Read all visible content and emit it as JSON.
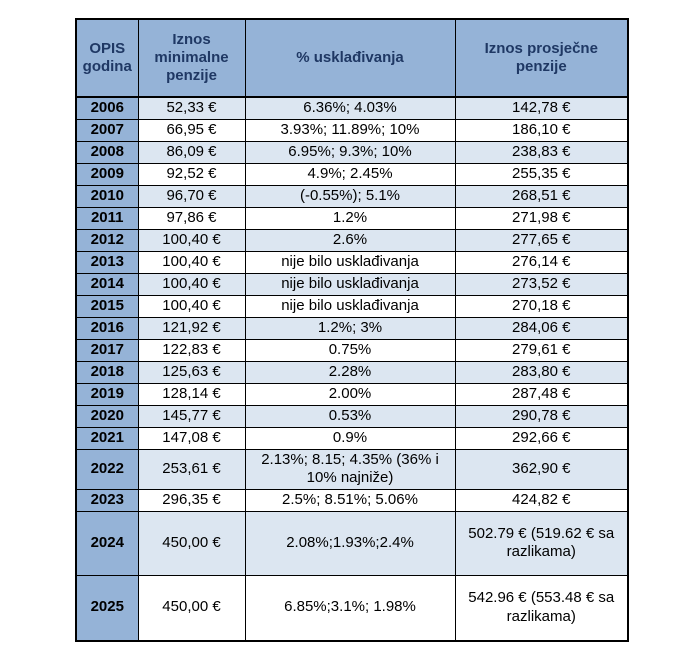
{
  "colors": {
    "header_bg": "#95B3D7",
    "year_col_bg": "#95B3D7",
    "row_alt_bg": "#DCE6F1",
    "row_bg": "#FFFFFF",
    "header_text": "#1F3864",
    "body_text": "#000000",
    "border": "#000000"
  },
  "table": {
    "columns": [
      "OPIS godina",
      "Iznos minimalne penzije",
      "% usklađivanja",
      "Iznos prosječne penzije"
    ],
    "rows": [
      {
        "year": "2006",
        "min": "52,33 €",
        "adj": "6.36%; 4.03%",
        "avg": "142,78 €"
      },
      {
        "year": "2007",
        "min": "66,95 €",
        "adj": "3.93%; 11.89%; 10%",
        "avg": "186,10 €"
      },
      {
        "year": "2008",
        "min": "86,09 €",
        "adj": "6.95%; 9.3%; 10%",
        "avg": "238,83 €"
      },
      {
        "year": "2009",
        "min": "92,52 €",
        "adj": "4.9%; 2.45%",
        "avg": "255,35 €"
      },
      {
        "year": "2010",
        "min": "96,70 €",
        "adj": "(-0.55%); 5.1%",
        "avg": "268,51 €"
      },
      {
        "year": "2011",
        "min": "97,86 €",
        "adj": "1.2%",
        "avg": "271,98 €"
      },
      {
        "year": "2012",
        "min": "100,40 €",
        "adj": "2.6%",
        "avg": "277,65 €"
      },
      {
        "year": "2013",
        "min": "100,40 €",
        "adj": "nije bilo usklađivanja",
        "avg": "276,14 €"
      },
      {
        "year": "2014",
        "min": "100,40 €",
        "adj": "nije bilo usklađivanja",
        "avg": "273,52 €"
      },
      {
        "year": "2015",
        "min": "100,40 €",
        "adj": "nije bilo usklađivanja",
        "avg": "270,18 €"
      },
      {
        "year": "2016",
        "min": "121,92 €",
        "adj": "1.2%; 3%",
        "avg": "284,06 €"
      },
      {
        "year": "2017",
        "min": "122,83 €",
        "adj": "0.75%",
        "avg": "279,61 €"
      },
      {
        "year": "2018",
        "min": "125,63 €",
        "adj": "2.28%",
        "avg": "283,80 €"
      },
      {
        "year": "2019",
        "min": "128,14 €",
        "adj": "2.00%",
        "avg": "287,48 €"
      },
      {
        "year": "2020",
        "min": "145,77 €",
        "adj": "0.53%",
        "avg": "290,78 €"
      },
      {
        "year": "2021",
        "min": "147,08 €",
        "adj": "0.9%",
        "avg": "292,66 €"
      },
      {
        "year": "2022",
        "min": "253,61 €",
        "adj": "2.13%; 8.15; 4.35% (36% i 10% najniže)",
        "avg": "362,90 €"
      },
      {
        "year": "2023",
        "min": "296,35 €",
        "adj": "2.5%; 8.51%; 5.06%",
        "avg": "424,82 €"
      },
      {
        "year": "2024",
        "min": "450,00 €",
        "adj": "2.08%;1.93%;2.4%",
        "avg": "502.79 € (519.62 € sa razlikama)"
      },
      {
        "year": "2025",
        "min": "450,00 €",
        "adj": "6.85%;3.1%; 1.98%",
        "avg": "542.96 € (553.48 € sa razlikama)"
      }
    ]
  }
}
